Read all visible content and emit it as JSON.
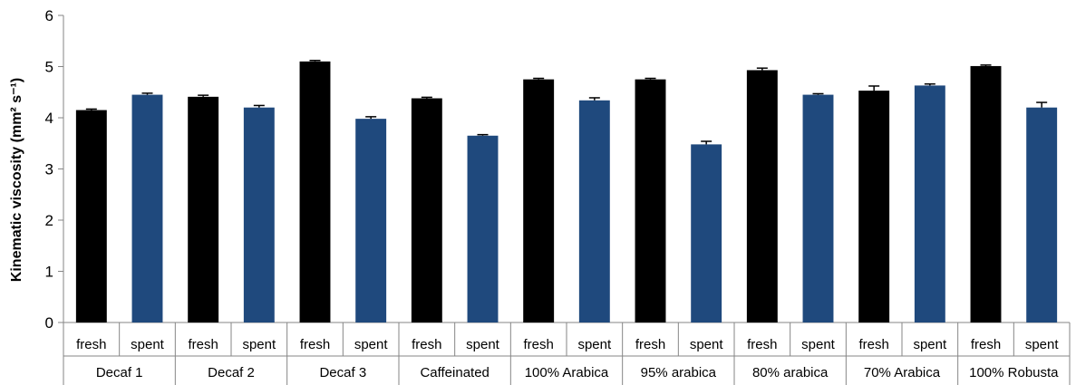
{
  "chart_data": {
    "type": "bar",
    "ylabel": "Kinematic viscosity (mm² s⁻¹)",
    "ylim": [
      0,
      6
    ],
    "yticks": [
      0,
      1,
      2,
      3,
      4,
      5,
      6
    ],
    "groups": [
      {
        "name": "Decaf 1",
        "bars": [
          {
            "label": "fresh",
            "value": 4.15,
            "error": 0.02
          },
          {
            "label": "spent",
            "value": 4.45,
            "error": 0.03
          }
        ]
      },
      {
        "name": "Decaf 2",
        "bars": [
          {
            "label": "fresh",
            "value": 4.41,
            "error": 0.03
          },
          {
            "label": "spent",
            "value": 4.2,
            "error": 0.04
          }
        ]
      },
      {
        "name": "Decaf 3",
        "bars": [
          {
            "label": "fresh",
            "value": 5.1,
            "error": 0.02
          },
          {
            "label": "spent",
            "value": 3.98,
            "error": 0.04
          }
        ]
      },
      {
        "name": "Caffeinated",
        "bars": [
          {
            "label": "fresh",
            "value": 4.38,
            "error": 0.02
          },
          {
            "label": "spent",
            "value": 3.65,
            "error": 0.02
          }
        ]
      },
      {
        "name": "100% Arabica",
        "bars": [
          {
            "label": "fresh",
            "value": 4.75,
            "error": 0.02
          },
          {
            "label": "spent",
            "value": 4.34,
            "error": 0.05
          }
        ]
      },
      {
        "name": "95% arabica",
        "bars": [
          {
            "label": "fresh",
            "value": 4.75,
            "error": 0.02
          },
          {
            "label": "spent",
            "value": 3.48,
            "error": 0.06
          }
        ]
      },
      {
        "name": "80% arabica",
        "bars": [
          {
            "label": "fresh",
            "value": 4.93,
            "error": 0.04
          },
          {
            "label": "spent",
            "value": 4.45,
            "error": 0.02
          }
        ]
      },
      {
        "name": "70% Arabica",
        "bars": [
          {
            "label": "fresh",
            "value": 4.53,
            "error": 0.09
          },
          {
            "label": "spent",
            "value": 4.63,
            "error": 0.03
          }
        ]
      },
      {
        "name": "100% Robusta",
        "bars": [
          {
            "label": "fresh",
            "value": 5.01,
            "error": 0.02
          },
          {
            "label": "spent",
            "value": 4.2,
            "error": 0.1
          }
        ]
      }
    ],
    "colors": {
      "fresh": "#000000",
      "spent": "#1f497d"
    },
    "grid": false,
    "legend": "none"
  }
}
